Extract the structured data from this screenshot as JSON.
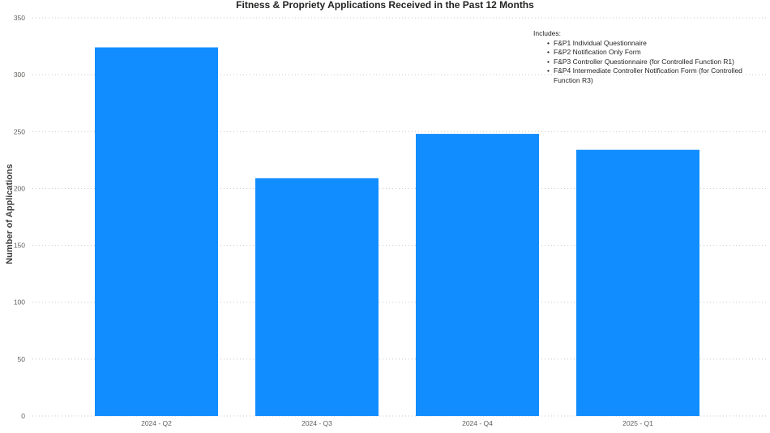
{
  "chart_data": {
    "type": "bar",
    "title": "Fitness & Propriety Applications Received in the Past 12 Months",
    "xlabel": "",
    "ylabel": "Number of Applications",
    "categories": [
      "2024 - Q2",
      "2024 - Q3",
      "2024 - Q4",
      "2025 - Q1"
    ],
    "values": [
      324,
      209,
      248,
      234
    ],
    "ylim": [
      0,
      350
    ],
    "yticks": [
      0,
      50,
      100,
      150,
      200,
      250,
      300,
      350
    ],
    "grid": true,
    "bar_color": "#118DFF"
  },
  "annotation": {
    "heading": "Includes:",
    "items": [
      "F&P1 Individual Questionnaire",
      "F&P2 Notification Only Form",
      "F&P3 Controller Questionnaire (for Controlled Function R1)",
      "F&P4 Intermediate Controller Notification Form (for Controlled Function R3)"
    ]
  }
}
